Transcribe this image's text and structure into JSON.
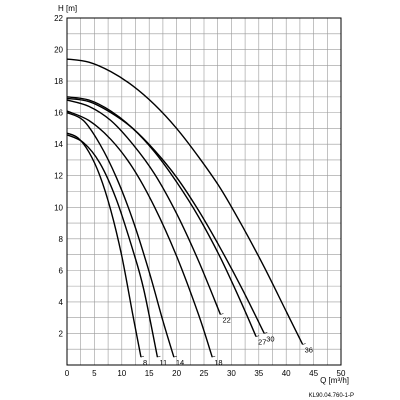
{
  "chart_data": {
    "type": "line",
    "xlabel": "Q [m³/h]",
    "ylabel": "H [m]",
    "xlim": [
      0,
      50
    ],
    "ylim": [
      0,
      22
    ],
    "x_ticks": [
      "0",
      "5",
      "10",
      "15",
      "20",
      "25",
      "30",
      "35",
      "40",
      "45",
      "50"
    ],
    "y_ticks": [
      "2",
      "4",
      "6",
      "8",
      "10",
      "12",
      "14",
      "16",
      "18",
      "20",
      "22"
    ],
    "grid": true,
    "code": "KL90.04.760-1-P",
    "series": [
      {
        "name": "8",
        "x": [
          0,
          2,
          4,
          6,
          8,
          10,
          12,
          13.5
        ],
        "y": [
          14.7,
          14.4,
          13.5,
          12.0,
          9.8,
          6.9,
          3.2,
          0.5
        ]
      },
      {
        "name": "11",
        "x": [
          0,
          3,
          6,
          9,
          12,
          14,
          16.5
        ],
        "y": [
          14.6,
          14.1,
          12.8,
          10.5,
          7.3,
          4.8,
          0.5
        ]
      },
      {
        "name": "14",
        "x": [
          0,
          3,
          6,
          9,
          12,
          15,
          17.5,
          19.5
        ],
        "y": [
          16.0,
          15.5,
          14.0,
          11.9,
          9.2,
          5.9,
          2.8,
          0.5
        ]
      },
      {
        "name": "18",
        "x": [
          0,
          4,
          8,
          12,
          16,
          20,
          24,
          26.5
        ],
        "y": [
          16.1,
          15.5,
          14.3,
          12.5,
          10.0,
          6.9,
          3.2,
          0.5
        ]
      },
      {
        "name": "22",
        "x": [
          0,
          4,
          8,
          12,
          16,
          20,
          24,
          28
        ],
        "y": [
          16.8,
          16.4,
          15.5,
          14.0,
          12.1,
          9.6,
          6.6,
          3.2
        ]
      },
      {
        "name": "27",
        "x": [
          0,
          4,
          8,
          12,
          16,
          20,
          24,
          28,
          32,
          34.5
        ],
        "y": [
          17.0,
          16.8,
          16.1,
          15.0,
          13.5,
          11.6,
          9.4,
          6.8,
          3.8,
          1.8
        ]
      },
      {
        "name": "30",
        "x": [
          0,
          4,
          8,
          12,
          16,
          20,
          24,
          28,
          32,
          36
        ],
        "y": [
          16.9,
          16.7,
          16.0,
          15.0,
          13.6,
          11.9,
          9.8,
          7.4,
          4.8,
          2.0
        ]
      },
      {
        "name": "36",
        "x": [
          0,
          4,
          8,
          12,
          16,
          20,
          24,
          28,
          32,
          36,
          40,
          43
        ],
        "y": [
          19.4,
          19.2,
          18.6,
          17.7,
          16.5,
          15.0,
          13.2,
          11.2,
          8.8,
          6.2,
          3.4,
          1.3
        ]
      }
    ]
  }
}
